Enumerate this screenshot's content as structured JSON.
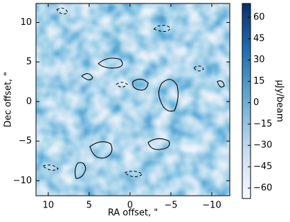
{
  "chart_data": {
    "type": "heatmap",
    "xlabel": "RA offset, \"",
    "ylabel": "Dec offset, \"",
    "colorbar_label": "μJy/beam",
    "colormap": "Blues",
    "xlim": [
      11.5,
      -12.2
    ],
    "ylim": [
      -11.9,
      12.4
    ],
    "xticks": [
      10,
      5,
      0,
      {
        "value": -5,
        "label": "−5"
      },
      {
        "value": -10,
        "label": "−10"
      }
    ],
    "yticks": [
      10,
      5,
      0,
      {
        "value": -5,
        "label": "−5"
      },
      {
        "value": -10,
        "label": "−10"
      }
    ],
    "clim": [
      -67.3,
      69.7
    ],
    "cticks": [
      60,
      45,
      30,
      15,
      0,
      {
        "value": -15,
        "label": "−15"
      },
      {
        "value": -30,
        "label": "−30"
      },
      {
        "value": -45,
        "label": "−45"
      },
      {
        "value": -60,
        "label": "−60"
      }
    ]
  }
}
